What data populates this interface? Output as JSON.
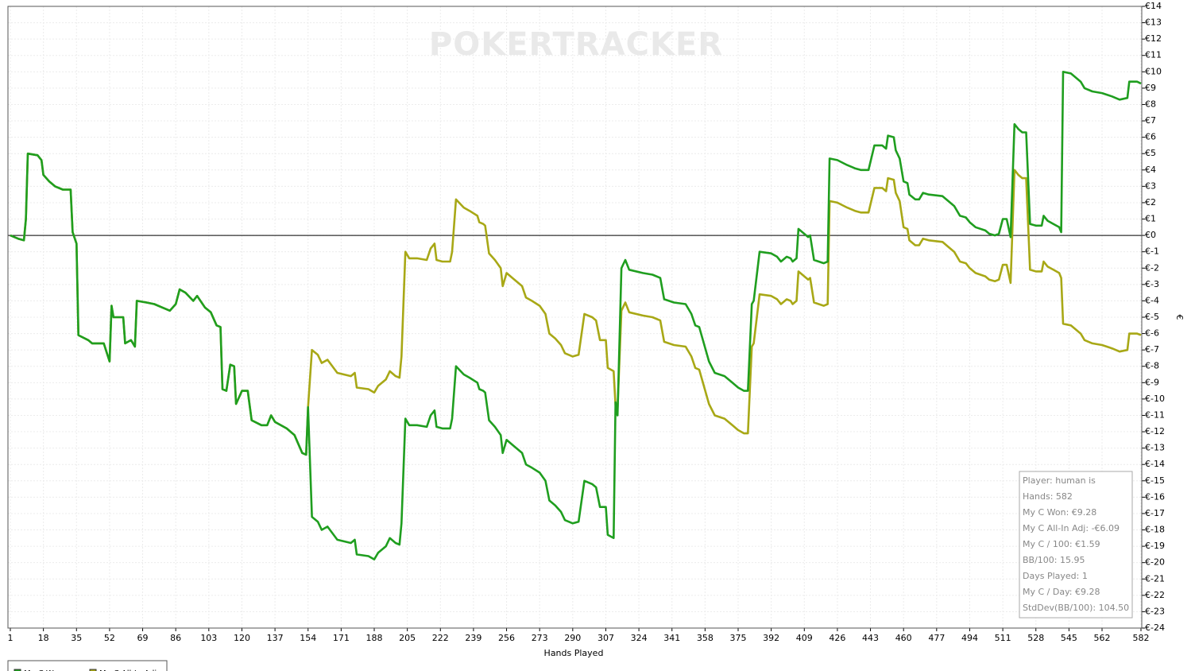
{
  "chart_data": {
    "type": "line",
    "watermark": "POKERTRACKER",
    "xlabel": "Hands Played",
    "ylabel": "€",
    "x": [
      1,
      5,
      8,
      9,
      10,
      15,
      17,
      18,
      21,
      24,
      28,
      32,
      33,
      35,
      36,
      41,
      43,
      49,
      52,
      53,
      54,
      59,
      60,
      63,
      65,
      66,
      71,
      75,
      79,
      83,
      86,
      88,
      91,
      95,
      97,
      101,
      104,
      107,
      109,
      110,
      112,
      114,
      116,
      117,
      120,
      123,
      125,
      130,
      133,
      135,
      137,
      143,
      147,
      151,
      153,
      154,
      156,
      159,
      161,
      164,
      169,
      176,
      178,
      179,
      185,
      188,
      190,
      194,
      196,
      199,
      201,
      202,
      204,
      206,
      210,
      215,
      217,
      219,
      220,
      223,
      227,
      228,
      230,
      234,
      237,
      241,
      242,
      244,
      245,
      247,
      250,
      253,
      254,
      256,
      259,
      264,
      266,
      269,
      273,
      276,
      278,
      281,
      284,
      286,
      290,
      293,
      296,
      300,
      302,
      304,
      307,
      308,
      311,
      312,
      313,
      315,
      317,
      319,
      326,
      331,
      335,
      337,
      342,
      348,
      351,
      353,
      355,
      360,
      363,
      368,
      372,
      375,
      378,
      380,
      382,
      383,
      386,
      392,
      395,
      397,
      400,
      402,
      403,
      405,
      406,
      408,
      411,
      412,
      414,
      419,
      421,
      422,
      426,
      431,
      435,
      438,
      442,
      445,
      449,
      451,
      452,
      455,
      456,
      458,
      460,
      462,
      463,
      466,
      468,
      470,
      473,
      480,
      483,
      486,
      489,
      492,
      494,
      497,
      502,
      504,
      507,
      509,
      511,
      513,
      515,
      517,
      519,
      521,
      523,
      525,
      528,
      531,
      532,
      534,
      537,
      540,
      541,
      542,
      546,
      548,
      551,
      553,
      557,
      562,
      567,
      571,
      575,
      576,
      580,
      582
    ],
    "series": [
      {
        "name": "My C Won",
        "color": "#1f9e1f",
        "values": [
          0,
          -0.2,
          -0.3,
          1,
          5,
          4.9,
          4.6,
          3.7,
          3.3,
          3,
          2.8,
          2.8,
          0.2,
          -0.5,
          -6.1,
          -6.4,
          -6.6,
          -6.6,
          -7.7,
          -4.3,
          -5,
          -5,
          -6.6,
          -6.4,
          -6.8,
          -4,
          -4.1,
          -4.2,
          -4.4,
          -4.6,
          -4.2,
          -3.3,
          -3.5,
          -4,
          -3.7,
          -4.4,
          -4.7,
          -5.5,
          -5.6,
          -9.4,
          -9.5,
          -7.9,
          -8,
          -10.3,
          -9.5,
          -9.5,
          -11.3,
          -11.6,
          -11.6,
          -11,
          -11.4,
          -11.8,
          -12.2,
          -13.3,
          -13.4,
          -10.5,
          -17.2,
          -17.5,
          -18,
          -17.8,
          -18.6,
          -18.8,
          -18.6,
          -19.5,
          -19.6,
          -19.8,
          -19.4,
          -19,
          -18.5,
          -18.8,
          -18.9,
          -17.6,
          -11.2,
          -11.6,
          -11.6,
          -11.7,
          -11,
          -10.7,
          -11.7,
          -11.8,
          -11.8,
          -11.2,
          -8,
          -8.5,
          -8.7,
          -9,
          -9.4,
          -9.5,
          -9.6,
          -11.3,
          -11.7,
          -12.2,
          -13.3,
          -12.5,
          -12.8,
          -13.3,
          -14,
          -14.2,
          -14.5,
          -15,
          -16.2,
          -16.5,
          -16.9,
          -17.4,
          -17.6,
          -17.5,
          -15,
          -15.2,
          -15.4,
          -16.6,
          -16.6,
          -18.3,
          -18.5,
          -10.2,
          -11,
          -2,
          -1.5,
          -2.1,
          -2.3,
          -2.4,
          -2.6,
          -3.9,
          -4.1,
          -4.2,
          -4.8,
          -5.5,
          -5.6,
          -7.7,
          -8.4,
          -8.6,
          -9,
          -9.3,
          -9.5,
          -9.5,
          -4.2,
          -4,
          -1,
          -1.1,
          -1.3,
          -1.6,
          -1.3,
          -1.4,
          -1.6,
          -1.4,
          0.4,
          0.2,
          -0.1,
          0,
          -1.5,
          -1.7,
          -1.6,
          4.7,
          4.6,
          4.3,
          4.1,
          4,
          4,
          5.5,
          5.5,
          5.3,
          6.1,
          6,
          5.2,
          4.7,
          3.3,
          3.2,
          2.5,
          2.2,
          2.2,
          2.6,
          2.5,
          2.4,
          2.1,
          1.8,
          1.2,
          1.1,
          0.8,
          0.5,
          0.3,
          0.1,
          0,
          0.1,
          1,
          1,
          -0.1,
          6.8,
          6.5,
          6.3,
          6.3,
          0.7,
          0.6,
          0.6,
          1.2,
          0.9,
          0.7,
          0.5,
          0.2,
          10,
          9.9,
          9.7,
          9.4,
          9,
          8.8,
          8.7,
          8.5,
          8.3,
          8.4,
          9.4,
          9.4,
          9.28
        ]
      },
      {
        "name": "My C All-In Adj",
        "color": "#a8a816",
        "values": [
          0,
          -0.2,
          -0.3,
          1,
          5,
          4.9,
          4.6,
          3.7,
          3.3,
          3,
          2.8,
          2.8,
          0.2,
          -0.5,
          -6.1,
          -6.4,
          -6.6,
          -6.6,
          -7.7,
          -4.3,
          -5,
          -5,
          -6.6,
          -6.4,
          -6.8,
          -4,
          -4.1,
          -4.2,
          -4.4,
          -4.6,
          -4.2,
          -3.3,
          -3.5,
          -4,
          -3.7,
          -4.4,
          -4.7,
          -5.5,
          -5.6,
          -9.4,
          -9.5,
          -7.9,
          -8,
          -10.3,
          -9.5,
          -9.5,
          -11.3,
          -11.6,
          -11.6,
          -11,
          -11.4,
          -11.8,
          -12.2,
          -13.3,
          -13.4,
          -10.5,
          -7,
          -7.3,
          -7.8,
          -7.6,
          -8.4,
          -8.6,
          -8.4,
          -9.3,
          -9.4,
          -9.6,
          -9.2,
          -8.8,
          -8.3,
          -8.6,
          -8.7,
          -7.4,
          -1,
          -1.4,
          -1.4,
          -1.5,
          -0.8,
          -0.5,
          -1.5,
          -1.6,
          -1.6,
          -1,
          2.2,
          1.7,
          1.5,
          1.2,
          0.8,
          0.7,
          0.6,
          -1.1,
          -1.5,
          -2,
          -3.1,
          -2.3,
          -2.6,
          -3.1,
          -3.8,
          -4,
          -4.3,
          -4.8,
          -6,
          -6.3,
          -6.7,
          -7.2,
          -7.4,
          -7.3,
          -4.8,
          -5,
          -5.2,
          -6.4,
          -6.4,
          -8.1,
          -8.3,
          -10.4,
          -10.6,
          -4.6,
          -4.1,
          -4.7,
          -4.9,
          -5,
          -5.2,
          -6.5,
          -6.7,
          -6.8,
          -7.4,
          -8.1,
          -8.2,
          -10.3,
          -11,
          -11.2,
          -11.6,
          -11.9,
          -12.1,
          -12.1,
          -6.8,
          -6.6,
          -3.6,
          -3.7,
          -3.9,
          -4.2,
          -3.9,
          -4,
          -4.2,
          -4,
          -2.2,
          -2.4,
          -2.7,
          -2.6,
          -4.1,
          -4.3,
          -4.2,
          2.1,
          2,
          1.7,
          1.5,
          1.4,
          1.4,
          2.9,
          2.9,
          2.7,
          3.5,
          3.4,
          2.6,
          2.1,
          0.5,
          0.4,
          -0.3,
          -0.6,
          -0.6,
          -0.2,
          -0.3,
          -0.4,
          -0.7,
          -1,
          -1.6,
          -1.7,
          -2,
          -2.3,
          -2.5,
          -2.7,
          -2.8,
          -2.7,
          -1.8,
          -1.8,
          -2.9,
          4,
          3.7,
          3.5,
          3.5,
          -2.1,
          -2.2,
          -2.2,
          -1.6,
          -1.9,
          -2.1,
          -2.3,
          -2.6,
          -5.4,
          -5.5,
          -5.7,
          -6,
          -6.4,
          -6.6,
          -6.7,
          -6.9,
          -7.1,
          -7,
          -6,
          -6,
          -6.09
        ]
      }
    ],
    "xlim": [
      1,
      582
    ],
    "ylim": [
      -24,
      14
    ],
    "xticks": [
      1,
      18,
      35,
      52,
      69,
      86,
      103,
      120,
      137,
      154,
      171,
      188,
      205,
      222,
      239,
      256,
      273,
      290,
      307,
      324,
      341,
      358,
      375,
      392,
      409,
      426,
      443,
      460,
      477,
      494,
      511,
      528,
      545,
      562,
      582
    ],
    "yticks": [
      {
        "value": 14,
        "label": "€14"
      },
      {
        "value": 13,
        "label": "€13"
      },
      {
        "value": 12,
        "label": "€12"
      },
      {
        "value": 11,
        "label": "€11"
      },
      {
        "value": 10,
        "label": "€10"
      },
      {
        "value": 9,
        "label": "€9"
      },
      {
        "value": 8,
        "label": "€8"
      },
      {
        "value": 7,
        "label": "€7"
      },
      {
        "value": 6,
        "label": "€6"
      },
      {
        "value": 5,
        "label": "€5"
      },
      {
        "value": 4,
        "label": "€4"
      },
      {
        "value": 3,
        "label": "€3"
      },
      {
        "value": 2,
        "label": "€2"
      },
      {
        "value": 1,
        "label": "€1"
      },
      {
        "value": 0,
        "label": "€0"
      },
      {
        "value": -1,
        "label": "€-1"
      },
      {
        "value": -2,
        "label": "€-2"
      },
      {
        "value": -3,
        "label": "€-3"
      },
      {
        "value": -4,
        "label": "€-4"
      },
      {
        "value": -5,
        "label": "€-5"
      },
      {
        "value": -6,
        "label": "€-6"
      },
      {
        "value": -7,
        "label": "€-7"
      },
      {
        "value": -8,
        "label": "€-8"
      },
      {
        "value": -9,
        "label": "€-9"
      },
      {
        "value": -10,
        "label": "€-10"
      },
      {
        "value": -11,
        "label": "€-11"
      },
      {
        "value": -12,
        "label": "€-12"
      },
      {
        "value": -13,
        "label": "€-13"
      },
      {
        "value": -14,
        "label": "€-14"
      },
      {
        "value": -15,
        "label": "€-15"
      },
      {
        "value": -16,
        "label": "€-16"
      },
      {
        "value": -17,
        "label": "€-17"
      },
      {
        "value": -18,
        "label": "€-18"
      },
      {
        "value": -19,
        "label": "€-19"
      },
      {
        "value": -20,
        "label": "€-20"
      },
      {
        "value": -21,
        "label": "€-21"
      },
      {
        "value": -22,
        "label": "€-22"
      },
      {
        "value": -23,
        "label": "€-23"
      },
      {
        "value": -24,
        "label": "€-24"
      }
    ],
    "grid": true,
    "stats_box": [
      "Player: human is",
      "Hands: 582",
      "My C Won: €9.28",
      "My C All-In Adj: -€6.09",
      "My C / 100: €1.59",
      "BB/100: 15.95",
      "Days Played: 1",
      "My C / Day: €9.28",
      "StdDev(BB/100): 104.50"
    ]
  }
}
